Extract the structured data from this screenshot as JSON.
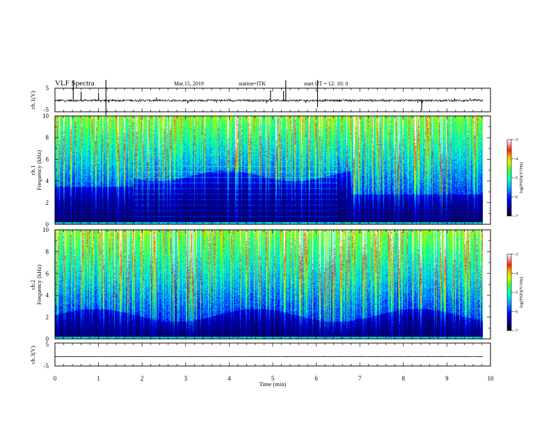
{
  "header": {
    "title": "VLF  Spectra",
    "date": "Mar.15, 2019",
    "station": "station=ITK",
    "start_ut": "start UT =   12: 10: 0"
  },
  "colors": {
    "background": "#ffffff",
    "axis": "#000000",
    "spectrogram_colormap": [
      "#000000",
      "#000050",
      "#0000c8",
      "#0050ff",
      "#00c8ff",
      "#00ffb0",
      "#50ff40",
      "#c8ff00",
      "#ffd000",
      "#ff6000",
      "#ff0000",
      "#ffffff"
    ]
  },
  "chart_data": [
    {
      "type": "line",
      "panel": "ch1-waveform",
      "ylabel": "ch.1(V)",
      "ylim": [
        -5,
        5
      ],
      "yticks": [
        "5",
        "-5"
      ],
      "xlim": [
        0,
        10
      ],
      "baseline": -0.2,
      "description_series": "noisy waveform near 0 V with sparse impulsive spikes",
      "spikes": [
        {
          "x": 0.42,
          "y": 4.8
        },
        {
          "x": 0.6,
          "y": 3.5
        },
        {
          "x": 1.0,
          "y": 3.0
        },
        {
          "x": 1.17,
          "y": 5.0
        },
        {
          "x": 1.17,
          "y": -5.0
        },
        {
          "x": 4.95,
          "y": 4.2
        },
        {
          "x": 5.25,
          "y": 3.8
        },
        {
          "x": 5.3,
          "y": 4.8
        },
        {
          "x": 6.03,
          "y": 5.0
        },
        {
          "x": 6.03,
          "y": -3.0
        },
        {
          "x": 8.42,
          "y": -4.5
        }
      ]
    },
    {
      "type": "heatmap",
      "panel": "ch1-spectrogram",
      "ylabel_line1": "ch.1",
      "ylabel_line2": "Frequency (kHz)",
      "ylim": [
        0,
        10
      ],
      "yticks": [
        "0",
        "2",
        "4",
        "6",
        "8",
        "10"
      ],
      "xlim": [
        0,
        10
      ],
      "colorbar": {
        "label": "log(PSD)(V²/Hz)",
        "range": [
          -7,
          -3
        ],
        "ticks": [
          "-3",
          "-4",
          "-5",
          "-6",
          "-7"
        ]
      }
    },
    {
      "type": "heatmap",
      "panel": "ch2-spectrogram",
      "ylabel_line1": "ch.2",
      "ylabel_line2": "Frequency (kHz)",
      "ylim": [
        0,
        10
      ],
      "yticks": [
        "0",
        "2",
        "4",
        "6",
        "8",
        "10"
      ],
      "xlim": [
        0,
        10
      ],
      "colorbar": {
        "label": "log(PSD)(V²/Hz)",
        "range": [
          -7,
          -3
        ],
        "ticks": [
          "-3",
          "-4",
          "-5",
          "-6",
          "-7"
        ]
      }
    },
    {
      "type": "line",
      "panel": "ch3-waveform",
      "ylabel": "ch.3(V)",
      "ylim": [
        -5,
        5
      ],
      "yticks": [
        "5",
        "-5"
      ],
      "xlim": [
        0,
        10
      ],
      "baseline": -0.9
    }
  ],
  "x_axis": {
    "label": "Time  (min)",
    "ticks": [
      "0",
      "1",
      "2",
      "3",
      "4",
      "5",
      "6",
      "7",
      "8",
      "9",
      "10"
    ],
    "data_end": 9.83
  }
}
